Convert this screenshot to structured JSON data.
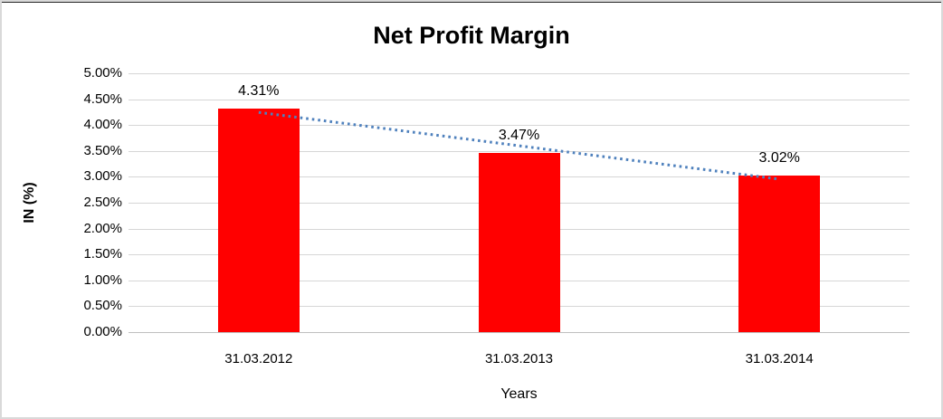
{
  "window": {
    "background": "#FFFFFF",
    "border_color": "#D9D9D9",
    "top_edge_color": "#262626"
  },
  "chart_data": {
    "type": "bar",
    "title": "Net Profit Margin",
    "categories": [
      "31.03.2012",
      "31.03.2013",
      "31.03.2014"
    ],
    "series": [
      {
        "name": "Net Profit Margin",
        "values": [
          4.31,
          3.47,
          3.02
        ]
      }
    ],
    "data_labels": [
      "4.31%",
      "3.47%",
      "3.02%"
    ],
    "xlabel": "Years",
    "ylabel": "IN (%)",
    "ylim": [
      0,
      5
    ],
    "ytick_step": 0.5,
    "yticks": [
      {
        "value": 5.0,
        "label": "5.00%"
      },
      {
        "value": 4.5,
        "label": "4.50%"
      },
      {
        "value": 4.0,
        "label": "4.00%"
      },
      {
        "value": 3.5,
        "label": "3.50%"
      },
      {
        "value": 3.0,
        "label": "3.00%"
      },
      {
        "value": 2.5,
        "label": "2.50%"
      },
      {
        "value": 2.0,
        "label": "2.00%"
      },
      {
        "value": 1.5,
        "label": "1.50%"
      },
      {
        "value": 1.0,
        "label": "1.00%"
      },
      {
        "value": 0.5,
        "label": "0.50%"
      },
      {
        "value": 0.0,
        "label": "0.00%"
      }
    ],
    "grid": true,
    "legend": "none",
    "trendline": {
      "type": "linear",
      "style": "dotted"
    },
    "colors": {
      "bar": "#FF0000",
      "trendline": "#4F81BD",
      "gridline": "#D6D6D6",
      "axis_line": "#BFBFBF",
      "text": "#000000"
    }
  }
}
